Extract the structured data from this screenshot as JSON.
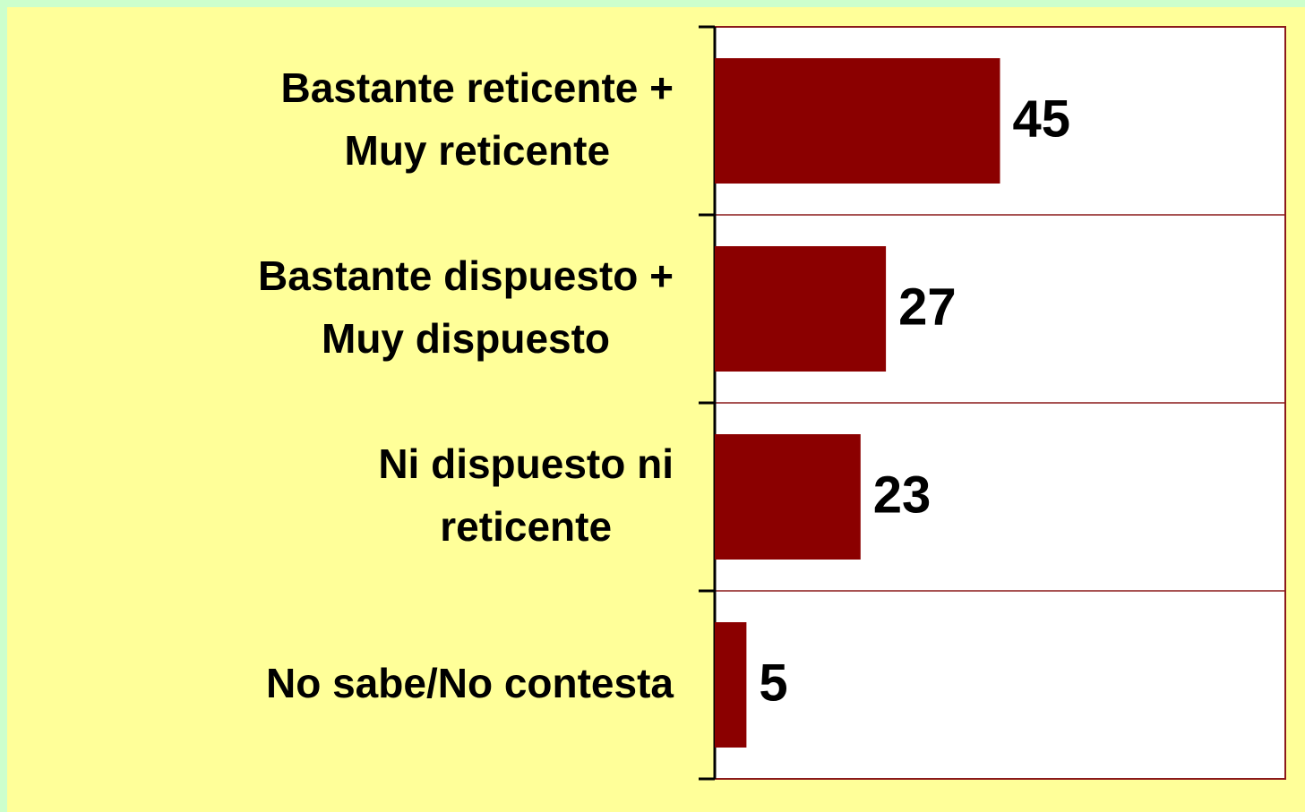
{
  "chart_data": {
    "type": "bar",
    "orientation": "horizontal",
    "categories": [
      "Bastante reticente +\nMuy reticente",
      "Bastante dispuesto +\nMuy dispuesto",
      "Ni dispuesto ni\nreticente",
      "No sabe/No contesta"
    ],
    "values": [
      45,
      27,
      23,
      5
    ],
    "color": "#8b0000",
    "xlim": [
      0,
      90
    ]
  }
}
